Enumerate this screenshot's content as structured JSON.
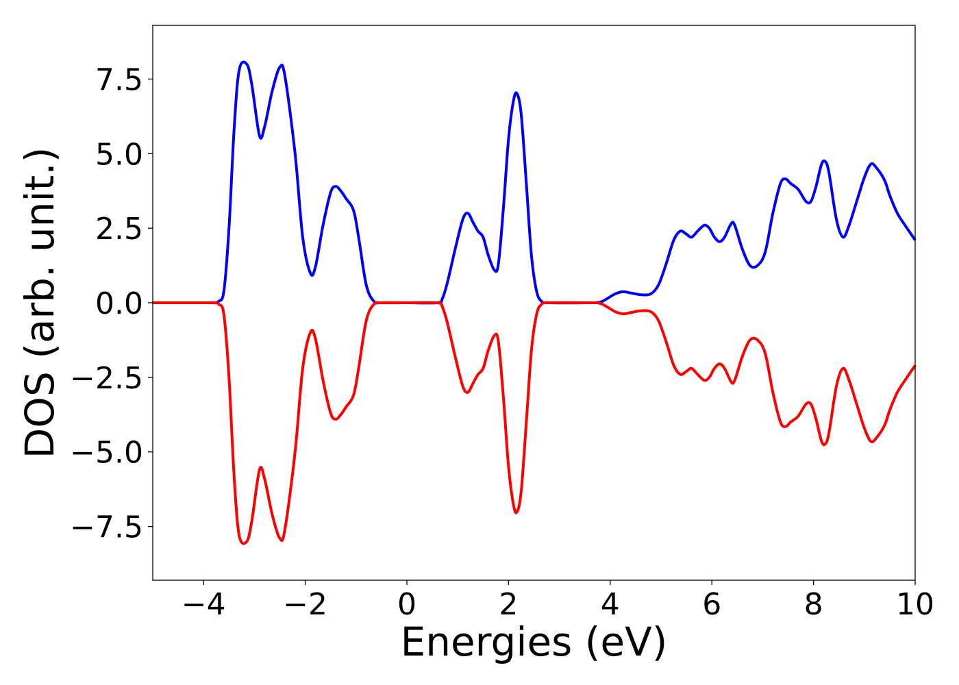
{
  "chart_data": {
    "type": "line",
    "title": "",
    "xlabel": "Energies (eV)",
    "ylabel": "DOS (arb. unit.)",
    "xlim": [
      -5,
      10
    ],
    "ylim": [
      -9.3,
      9.3
    ],
    "grid": false,
    "legend": "none",
    "x_ticks": [
      -4,
      -2,
      0,
      2,
      4,
      6,
      8,
      10
    ],
    "x_tick_labels": [
      "−4",
      "−2",
      "0",
      "2",
      "4",
      "6",
      "8",
      "10"
    ],
    "y_ticks": [
      7.5,
      5.0,
      2.5,
      0.0,
      -2.5,
      -5.0,
      -7.5
    ],
    "y_tick_labels": [
      "7.5",
      "5.0",
      "2.5",
      "0.0",
      "−2.5",
      "−5.0",
      "−7.5"
    ],
    "series": [
      {
        "color": "#0000ff",
        "points": [
          [
            -5.0,
            0.0
          ],
          [
            -4.0,
            0.0
          ],
          [
            -3.8,
            0.0
          ],
          [
            -3.7,
            0.05
          ],
          [
            -3.6,
            0.4
          ],
          [
            -3.5,
            2.5
          ],
          [
            -3.4,
            5.8
          ],
          [
            -3.3,
            7.8
          ],
          [
            -3.15,
            8.0
          ],
          [
            -3.05,
            7.3
          ],
          [
            -2.9,
            5.6
          ],
          [
            -2.8,
            5.9
          ],
          [
            -2.65,
            7.1
          ],
          [
            -2.5,
            7.9
          ],
          [
            -2.4,
            7.6
          ],
          [
            -2.2,
            5.0
          ],
          [
            -2.05,
            2.2
          ],
          [
            -1.9,
            1.0
          ],
          [
            -1.8,
            1.2
          ],
          [
            -1.65,
            2.6
          ],
          [
            -1.5,
            3.7
          ],
          [
            -1.4,
            3.9
          ],
          [
            -1.3,
            3.75
          ],
          [
            -1.2,
            3.5
          ],
          [
            -1.05,
            3.1
          ],
          [
            -0.95,
            2.2
          ],
          [
            -0.8,
            0.6
          ],
          [
            -0.65,
            0.05
          ],
          [
            -0.5,
            0.0
          ],
          [
            0.0,
            0.0
          ],
          [
            0.6,
            0.0
          ],
          [
            0.7,
            0.15
          ],
          [
            0.8,
            0.7
          ],
          [
            0.95,
            1.8
          ],
          [
            1.1,
            2.8
          ],
          [
            1.2,
            3.0
          ],
          [
            1.3,
            2.7
          ],
          [
            1.4,
            2.4
          ],
          [
            1.5,
            2.2
          ],
          [
            1.6,
            1.6
          ],
          [
            1.72,
            1.1
          ],
          [
            1.8,
            1.3
          ],
          [
            1.9,
            3.2
          ],
          [
            2.0,
            5.5
          ],
          [
            2.1,
            6.8
          ],
          [
            2.17,
            7.0
          ],
          [
            2.25,
            6.3
          ],
          [
            2.35,
            4.0
          ],
          [
            2.45,
            1.6
          ],
          [
            2.55,
            0.4
          ],
          [
            2.65,
            0.05
          ],
          [
            2.8,
            0.0
          ],
          [
            3.6,
            0.0
          ],
          [
            3.8,
            0.02
          ],
          [
            3.95,
            0.15
          ],
          [
            4.1,
            0.3
          ],
          [
            4.25,
            0.37
          ],
          [
            4.4,
            0.33
          ],
          [
            4.6,
            0.27
          ],
          [
            4.8,
            0.3
          ],
          [
            4.95,
            0.6
          ],
          [
            5.1,
            1.3
          ],
          [
            5.25,
            2.1
          ],
          [
            5.38,
            2.4
          ],
          [
            5.5,
            2.3
          ],
          [
            5.6,
            2.2
          ],
          [
            5.72,
            2.4
          ],
          [
            5.85,
            2.6
          ],
          [
            5.95,
            2.5
          ],
          [
            6.05,
            2.2
          ],
          [
            6.15,
            2.05
          ],
          [
            6.25,
            2.2
          ],
          [
            6.38,
            2.65
          ],
          [
            6.45,
            2.6
          ],
          [
            6.6,
            1.8
          ],
          [
            6.75,
            1.25
          ],
          [
            6.9,
            1.25
          ],
          [
            7.05,
            1.7
          ],
          [
            7.2,
            3.0
          ],
          [
            7.35,
            4.0
          ],
          [
            7.45,
            4.15
          ],
          [
            7.55,
            4.0
          ],
          [
            7.7,
            3.8
          ],
          [
            7.85,
            3.4
          ],
          [
            7.95,
            3.4
          ],
          [
            8.05,
            3.9
          ],
          [
            8.15,
            4.6
          ],
          [
            8.22,
            4.75
          ],
          [
            8.3,
            4.4
          ],
          [
            8.45,
            2.8
          ],
          [
            8.58,
            2.2
          ],
          [
            8.7,
            2.6
          ],
          [
            8.85,
            3.4
          ],
          [
            9.0,
            4.2
          ],
          [
            9.13,
            4.65
          ],
          [
            9.25,
            4.5
          ],
          [
            9.4,
            4.1
          ],
          [
            9.5,
            3.6
          ],
          [
            9.65,
            3.0
          ],
          [
            9.8,
            2.6
          ],
          [
            10.0,
            2.1
          ]
        ]
      },
      {
        "color": "#ff0000",
        "points": [
          [
            -5.0,
            0.0
          ],
          [
            -4.0,
            0.0
          ],
          [
            -3.8,
            0.0
          ],
          [
            -3.7,
            -0.05
          ],
          [
            -3.6,
            -0.4
          ],
          [
            -3.5,
            -2.5
          ],
          [
            -3.4,
            -5.8
          ],
          [
            -3.3,
            -7.8
          ],
          [
            -3.15,
            -8.0
          ],
          [
            -3.05,
            -7.3
          ],
          [
            -2.9,
            -5.6
          ],
          [
            -2.8,
            -5.9
          ],
          [
            -2.65,
            -7.1
          ],
          [
            -2.5,
            -7.9
          ],
          [
            -2.4,
            -7.6
          ],
          [
            -2.2,
            -5.0
          ],
          [
            -2.05,
            -2.2
          ],
          [
            -1.9,
            -1.0
          ],
          [
            -1.8,
            -1.2
          ],
          [
            -1.65,
            -2.6
          ],
          [
            -1.5,
            -3.7
          ],
          [
            -1.4,
            -3.9
          ],
          [
            -1.3,
            -3.75
          ],
          [
            -1.2,
            -3.5
          ],
          [
            -1.05,
            -3.1
          ],
          [
            -0.95,
            -2.2
          ],
          [
            -0.8,
            -0.6
          ],
          [
            -0.65,
            -0.05
          ],
          [
            -0.5,
            0.0
          ],
          [
            0.0,
            0.0
          ],
          [
            0.6,
            0.0
          ],
          [
            0.7,
            -0.15
          ],
          [
            0.8,
            -0.7
          ],
          [
            0.95,
            -1.8
          ],
          [
            1.1,
            -2.8
          ],
          [
            1.2,
            -3.0
          ],
          [
            1.3,
            -2.7
          ],
          [
            1.4,
            -2.4
          ],
          [
            1.5,
            -2.2
          ],
          [
            1.6,
            -1.6
          ],
          [
            1.72,
            -1.1
          ],
          [
            1.8,
            -1.3
          ],
          [
            1.9,
            -3.2
          ],
          [
            2.0,
            -5.5
          ],
          [
            2.1,
            -6.8
          ],
          [
            2.17,
            -7.0
          ],
          [
            2.25,
            -6.3
          ],
          [
            2.35,
            -4.0
          ],
          [
            2.45,
            -1.6
          ],
          [
            2.55,
            -0.4
          ],
          [
            2.65,
            -0.05
          ],
          [
            2.8,
            0.0
          ],
          [
            3.6,
            0.0
          ],
          [
            3.8,
            -0.02
          ],
          [
            3.95,
            -0.15
          ],
          [
            4.1,
            -0.3
          ],
          [
            4.25,
            -0.37
          ],
          [
            4.4,
            -0.33
          ],
          [
            4.6,
            -0.27
          ],
          [
            4.8,
            -0.3
          ],
          [
            4.95,
            -0.6
          ],
          [
            5.1,
            -1.3
          ],
          [
            5.25,
            -2.1
          ],
          [
            5.38,
            -2.4
          ],
          [
            5.5,
            -2.3
          ],
          [
            5.6,
            -2.2
          ],
          [
            5.72,
            -2.4
          ],
          [
            5.85,
            -2.6
          ],
          [
            5.95,
            -2.5
          ],
          [
            6.05,
            -2.2
          ],
          [
            6.15,
            -2.05
          ],
          [
            6.25,
            -2.2
          ],
          [
            6.38,
            -2.65
          ],
          [
            6.45,
            -2.6
          ],
          [
            6.6,
            -1.8
          ],
          [
            6.75,
            -1.25
          ],
          [
            6.9,
            -1.25
          ],
          [
            7.05,
            -1.7
          ],
          [
            7.2,
            -3.0
          ],
          [
            7.35,
            -4.0
          ],
          [
            7.45,
            -4.15
          ],
          [
            7.55,
            -4.0
          ],
          [
            7.7,
            -3.8
          ],
          [
            7.85,
            -3.4
          ],
          [
            7.95,
            -3.4
          ],
          [
            8.05,
            -3.9
          ],
          [
            8.15,
            -4.6
          ],
          [
            8.22,
            -4.75
          ],
          [
            8.3,
            -4.4
          ],
          [
            8.45,
            -2.8
          ],
          [
            8.58,
            -2.2
          ],
          [
            8.7,
            -2.6
          ],
          [
            8.85,
            -3.4
          ],
          [
            9.0,
            -4.2
          ],
          [
            9.13,
            -4.65
          ],
          [
            9.25,
            -4.5
          ],
          [
            9.4,
            -4.1
          ],
          [
            9.5,
            -3.6
          ],
          [
            9.65,
            -3.0
          ],
          [
            9.8,
            -2.6
          ],
          [
            10.0,
            -2.1
          ]
        ]
      }
    ]
  }
}
